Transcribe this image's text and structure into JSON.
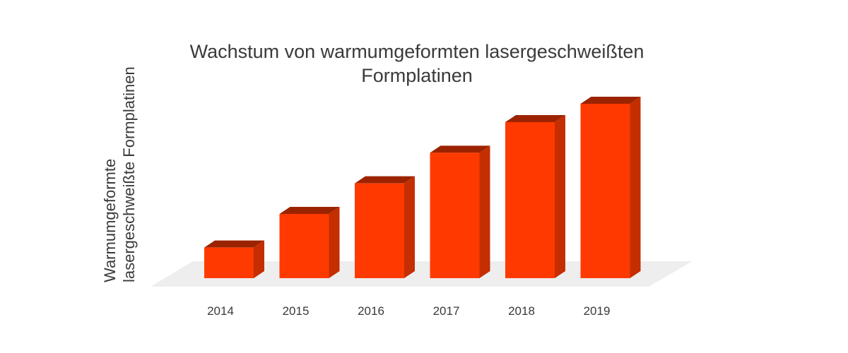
{
  "chart_data": {
    "type": "bar",
    "style": "3d-columns",
    "title_lines": [
      "Wachstum von warmumgeformten lasergeschweißten",
      "Formplatinen"
    ],
    "ylabel_lines": [
      "Warmumgeformte",
      "lasergeschweißte Formplatinen"
    ],
    "xlabel": "",
    "categories": [
      "2014",
      "2015",
      "2016",
      "2017",
      "2018",
      "2019"
    ],
    "values": [
      10,
      21,
      31,
      41,
      51,
      57
    ],
    "ylim": [
      0,
      60
    ],
    "grid": false,
    "legend": "none",
    "colors": {
      "front": "#ff3a00",
      "side": "#c42e00",
      "top": "#9c2300",
      "floor": "#eeeeee"
    }
  }
}
